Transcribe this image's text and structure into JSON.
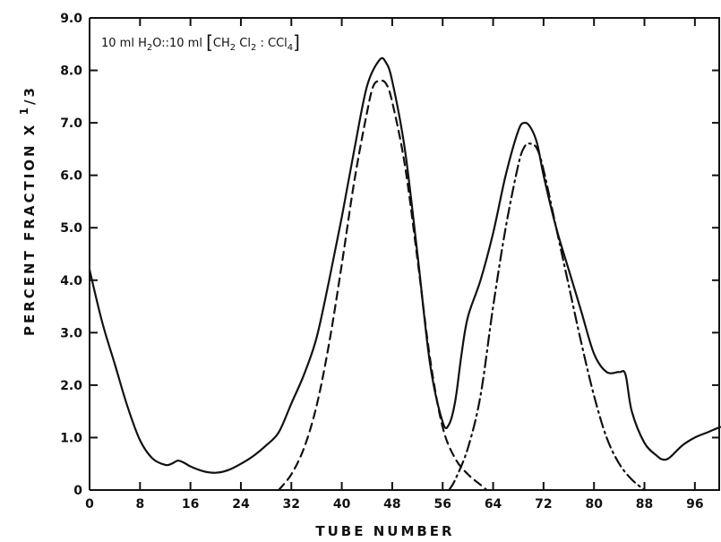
{
  "chart_data": {
    "type": "line",
    "title": "",
    "xlabel": "TUBE NUMBER",
    "ylabel": "PERCENT FRACTION X 1/3",
    "ylabel_parts": {
      "text": "PERCENT FRACTION X ",
      "num": "1",
      "den": "3"
    },
    "annotation": "10 ml H2O::10 ml [CH2 Cl2 : CCl4]",
    "annotation_parts": [
      "10 ml H",
      "2",
      "O::10 ml ",
      "[",
      "CH",
      "2",
      " Cl",
      "2",
      " : CCl",
      "4",
      "]"
    ],
    "xlim": [
      0,
      100
    ],
    "ylim": [
      0,
      9.0
    ],
    "x_ticks": [
      0,
      8,
      16,
      24,
      32,
      40,
      48,
      56,
      64,
      72,
      80,
      88,
      96
    ],
    "y_ticks": [
      0,
      1.0,
      2.0,
      3.0,
      4.0,
      5.0,
      6.0,
      7.0,
      8.0,
      9.0
    ],
    "y_tick_labels": [
      "0",
      "1.0",
      "2.0",
      "3.0",
      "4.0",
      "5.0",
      "6.0",
      "7.0",
      "8.0",
      "9.0"
    ],
    "grid": false,
    "legend": "none",
    "series": [
      {
        "style": "solid",
        "x": [
          0,
          2,
          4,
          6,
          8,
          10,
          12,
          13,
          14,
          15,
          16,
          18,
          20,
          22,
          24,
          26,
          28,
          30,
          32,
          34,
          36,
          38,
          40,
          42,
          44,
          46,
          47,
          48,
          50,
          52,
          54,
          56,
          57,
          58,
          59,
          60,
          62,
          64,
          66,
          68,
          69,
          70,
          71,
          72,
          74,
          76,
          78,
          80,
          82,
          84,
          85,
          86,
          88,
          90,
          91,
          92,
          94,
          96,
          98,
          100
        ],
        "y": [
          4.2,
          3.2,
          2.4,
          1.6,
          0.95,
          0.6,
          0.48,
          0.5,
          0.56,
          0.52,
          0.45,
          0.36,
          0.33,
          0.38,
          0.5,
          0.65,
          0.85,
          1.1,
          1.65,
          2.2,
          2.9,
          4.0,
          5.2,
          6.5,
          7.7,
          8.2,
          8.15,
          7.8,
          6.5,
          4.5,
          2.4,
          1.3,
          1.25,
          1.7,
          2.6,
          3.3,
          4.0,
          4.9,
          6.0,
          6.85,
          7.0,
          6.9,
          6.6,
          6.0,
          5.0,
          4.2,
          3.4,
          2.6,
          2.25,
          2.25,
          2.2,
          1.5,
          0.9,
          0.65,
          0.58,
          0.62,
          0.85,
          1.0,
          1.1,
          1.2
        ]
      },
      {
        "style": "dashed",
        "x": [
          30,
          32,
          34,
          36,
          38,
          40,
          42,
          44,
          45,
          46,
          47,
          48,
          50,
          52,
          54,
          56,
          58,
          60,
          62,
          63
        ],
        "y": [
          0,
          0.3,
          0.8,
          1.6,
          2.8,
          4.3,
          5.9,
          7.2,
          7.7,
          7.8,
          7.75,
          7.4,
          6.2,
          4.4,
          2.5,
          1.2,
          0.6,
          0.3,
          0.1,
          0
        ]
      },
      {
        "style": "dashdot",
        "x": [
          57,
          58,
          60,
          62,
          64,
          66,
          68,
          69,
          70,
          71,
          72,
          74,
          76,
          78,
          80,
          82,
          84,
          86,
          88
        ],
        "y": [
          0,
          0.2,
          0.8,
          1.8,
          3.5,
          5.0,
          6.2,
          6.55,
          6.6,
          6.5,
          6.1,
          5.0,
          3.9,
          2.8,
          1.8,
          1.0,
          0.5,
          0.2,
          0
        ]
      }
    ]
  }
}
